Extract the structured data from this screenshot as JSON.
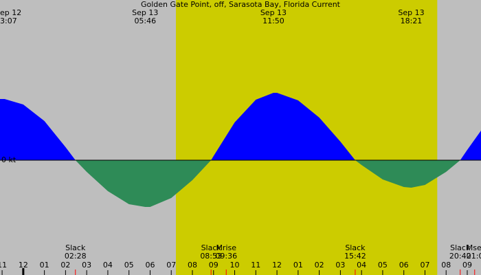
{
  "chart_data": {
    "type": "area",
    "title": "Golden Gate Point, off, Sarasota Bay, Florida Current",
    "x": [
      -1.1,
      -0.883,
      0,
      1,
      2,
      2.467,
      3,
      4,
      5,
      5.767,
      6,
      7,
      8,
      8.883,
      9,
      10,
      11,
      11.833,
      12,
      13,
      14,
      15,
      15.7,
      16,
      17,
      18,
      18.35,
      19,
      20,
      20.667,
      21,
      21.65
    ],
    "values": [
      0.89,
      0.89,
      0.81,
      0.57,
      0.19,
      0,
      -0.17,
      -0.45,
      -0.64,
      -0.68,
      -0.68,
      -0.55,
      -0.29,
      0,
      0.06,
      0.55,
      0.88,
      0.98,
      0.98,
      0.87,
      0.62,
      0.27,
      0,
      -0.07,
      -0.28,
      -0.39,
      -0.4,
      -0.36,
      -0.17,
      0,
      0.15,
      0.43
    ],
    "positive_color": "#0000ff",
    "negative_color": "#2e8b57",
    "background_color": "#bebebe",
    "daylight_color": "#cccc00",
    "daylight": [
      7.22,
      19.58
    ],
    "xlim": [
      -1.1,
      21.65
    ],
    "ylim": [
      -1.67,
      2.33
    ],
    "yticks": [
      {
        "value": 0,
        "label": "0 kt"
      }
    ],
    "date_change": 0,
    "xticks": [
      {
        "value": -1,
        "label": "11"
      },
      {
        "value": 0,
        "label": "12"
      },
      {
        "value": 1,
        "label": "01"
      },
      {
        "value": 2,
        "label": "02"
      },
      {
        "value": 3,
        "label": "03"
      },
      {
        "value": 4,
        "label": "04"
      },
      {
        "value": 5,
        "label": "05"
      },
      {
        "value": 6,
        "label": "06"
      },
      {
        "value": 7,
        "label": "07"
      },
      {
        "value": 8,
        "label": "08"
      },
      {
        "value": 9,
        "label": "09"
      },
      10,
      11,
      {
        "value": 12,
        "label": "12"
      },
      {
        "value": 13,
        "label": "01"
      },
      {
        "value": 14,
        "label": "02"
      },
      {
        "value": 15,
        "label": "03"
      },
      {
        "value": 16,
        "label": "04"
      },
      {
        "value": 17,
        "label": "05"
      },
      {
        "value": 18,
        "label": "06"
      },
      {
        "value": 19,
        "label": "07"
      },
      {
        "value": 20,
        "label": "08"
      },
      {
        "value": 21,
        "label": "09"
      }
    ],
    "extremes": [
      {
        "date": "ep 12",
        "time": "3:07",
        "x": -0.883,
        "clipped": true
      },
      {
        "date": "Sep 13",
        "time": "05:46",
        "x": 5.767
      },
      {
        "date": "Sep 13",
        "time": "11:50",
        "x": 11.833
      },
      {
        "date": "Sep 13",
        "time": "18:21",
        "x": 18.35
      }
    ],
    "events": [
      {
        "label": "Slack",
        "time": "02:28",
        "x": 2.467
      },
      {
        "label": "Slack",
        "time": "08:53",
        "x": 8.883
      },
      {
        "label": "Mrise",
        "time": "09:36",
        "x": 9.6
      },
      {
        "label": "Slack",
        "time": "15:42",
        "x": 15.7
      },
      {
        "label": "Slack",
        "time": "20:40",
        "x": 20.667
      },
      {
        "label": "Mse",
        "time": "21:0",
        "x": 21.35,
        "clipped": true
      }
    ]
  }
}
